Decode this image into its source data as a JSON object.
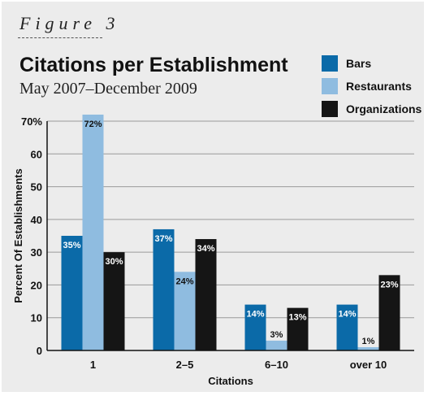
{
  "figure_label": "Figure 3",
  "chart_data": {
    "type": "bar",
    "title": "Citations per Establishment",
    "subtitle": "May 2007–December 2009",
    "xlabel": "Citations",
    "ylabel": "Percent Of Establishments",
    "categories": [
      "1",
      "2–5",
      "6–10",
      "over 10"
    ],
    "ylim": [
      0,
      70
    ],
    "yticks": [
      0,
      10,
      20,
      30,
      40,
      50,
      60,
      70
    ],
    "ytick_labels": [
      "0",
      "10",
      "20",
      "30",
      "40",
      "50",
      "60",
      "70%"
    ],
    "grid": true,
    "legend_position": "top-right",
    "series": [
      {
        "name": "Bars",
        "color": "#0b6aa8",
        "label_color": "#ffffff",
        "values": [
          35,
          37,
          14,
          14
        ],
        "labels": [
          "35%",
          "37%",
          "14%",
          "14%"
        ]
      },
      {
        "name": "Restaurants",
        "color": "#8fbce0",
        "label_color": "#111111",
        "values": [
          72,
          24,
          3,
          1
        ],
        "labels": [
          "72%",
          "24%",
          "3%",
          "1%"
        ]
      },
      {
        "name": "Organizations",
        "color": "#151515",
        "label_color": "#ffffff",
        "values": [
          30,
          34,
          13,
          23
        ],
        "labels": [
          "30%",
          "34%",
          "13%",
          "23%"
        ]
      }
    ]
  }
}
